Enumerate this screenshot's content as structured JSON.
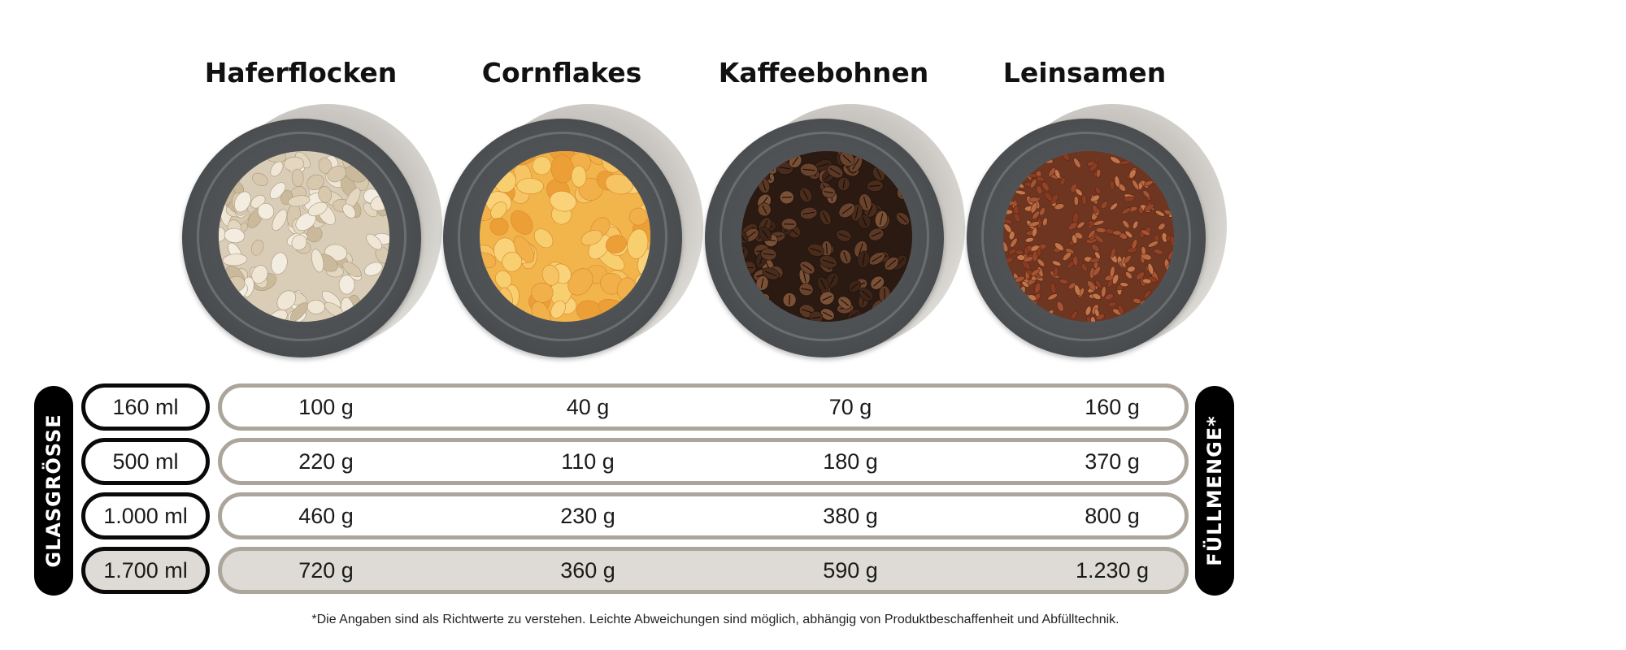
{
  "products": [
    {
      "name": "Haferflocken",
      "icon": "oat-flakes-photo"
    },
    {
      "name": "Cornflakes",
      "icon": "cornflakes-photo"
    },
    {
      "name": "Kaffeebohnen",
      "icon": "coffee-beans-photo"
    },
    {
      "name": "Leinsamen",
      "icon": "flax-seeds-photo"
    }
  ],
  "labels": {
    "left": "GLASGRÖSSE",
    "right": "FÜLLMENGE*"
  },
  "rows": [
    {
      "size": "160 ml",
      "values": [
        "100 g",
        "40 g",
        "70 g",
        "160 g"
      ],
      "highlight": false
    },
    {
      "size": "500 ml",
      "values": [
        "220 g",
        "110 g",
        "180 g",
        "370 g"
      ],
      "highlight": false
    },
    {
      "size": "1.000 ml",
      "values": [
        "460 g",
        "230 g",
        "380 g",
        "800 g"
      ],
      "highlight": false
    },
    {
      "size": "1.700 ml",
      "values": [
        "720 g",
        "360 g",
        "590 g",
        "1.230 g"
      ],
      "highlight": true
    }
  ],
  "footnote": "*Die Angaben sind als Richtwerte zu verstehen. Leichte Abweichungen sind möglich, abhängig von Produktbeschaffenheit und Abfülltechnik.",
  "colors": {
    "pill_border": "#aca59c",
    "highlight_fill": "#dedad5",
    "label_bg": "#000000",
    "lid": "#4d5053"
  }
}
